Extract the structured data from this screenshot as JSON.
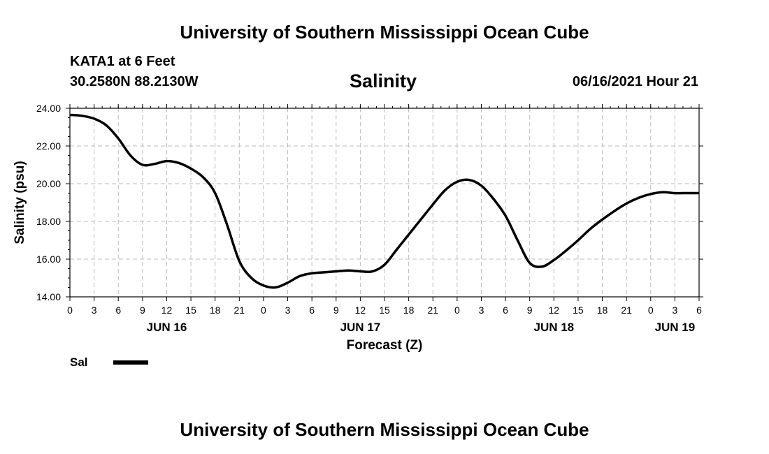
{
  "header": {
    "title": "University of Southern Mississippi Ocean Cube",
    "station": "KATA1 at 6 Feet",
    "coords": "30.2580N  88.2130W",
    "datetime": "06/16/2021 Hour 21"
  },
  "footer": {
    "title": "University of Southern Mississippi Ocean Cube"
  },
  "chart_data": {
    "type": "line",
    "title": "Salinity",
    "xlabel": "Forecast (Z)",
    "ylabel": "Salinity (psu)",
    "ylim": [
      14,
      24
    ],
    "yticks": [
      "14.00",
      "16.00",
      "18.00",
      "20.00",
      "22.00",
      "24.00"
    ],
    "xlim_hours": [
      0,
      78
    ],
    "xtick_labels": [
      "0",
      "3",
      "6",
      "9",
      "12",
      "15",
      "18",
      "21",
      "0",
      "3",
      "6",
      "9",
      "12",
      "15",
      "18",
      "21",
      "0",
      "3",
      "6",
      "9",
      "12",
      "15",
      "18",
      "21",
      "0",
      "3",
      "6"
    ],
    "day_labels": [
      {
        "label": "JUN 16",
        "hour": 12
      },
      {
        "label": "JUN 17",
        "hour": 36
      },
      {
        "label": "JUN 18",
        "hour": 60
      },
      {
        "label": "JUN 19",
        "hour": 75
      }
    ],
    "grid": true,
    "series": [
      {
        "name": "Sal",
        "color": "#000000",
        "x": [
          0,
          1.5,
          3,
          4.5,
          6,
          7.5,
          9,
          10.5,
          12,
          13.5,
          15,
          16.5,
          18,
          19.5,
          21,
          22.5,
          24,
          25.5,
          27,
          28.5,
          30,
          31.5,
          33,
          34.5,
          36,
          37.5,
          39,
          40.5,
          42,
          43.5,
          45,
          46.5,
          48,
          49.5,
          51,
          52.5,
          54,
          55.5,
          57,
          58.5,
          60,
          61.5,
          63,
          64.5,
          66,
          67.5,
          69,
          70.5,
          72,
          73.5,
          75,
          76.5,
          78
        ],
        "values": [
          23.65,
          23.6,
          23.45,
          23.1,
          22.4,
          21.5,
          21.0,
          21.05,
          21.2,
          21.1,
          20.8,
          20.35,
          19.5,
          17.8,
          15.9,
          15.0,
          14.6,
          14.5,
          14.75,
          15.1,
          15.25,
          15.3,
          15.35,
          15.4,
          15.35,
          15.35,
          15.7,
          16.5,
          17.3,
          18.1,
          18.9,
          19.65,
          20.1,
          20.2,
          19.9,
          19.2,
          18.3,
          17.0,
          15.8,
          15.6,
          15.95,
          16.45,
          17.0,
          17.6,
          18.1,
          18.55,
          18.95,
          19.25,
          19.45,
          19.55,
          19.5,
          19.5,
          19.5
        ]
      }
    ],
    "legend": [
      {
        "label": "Sal",
        "color": "#000000"
      }
    ]
  }
}
